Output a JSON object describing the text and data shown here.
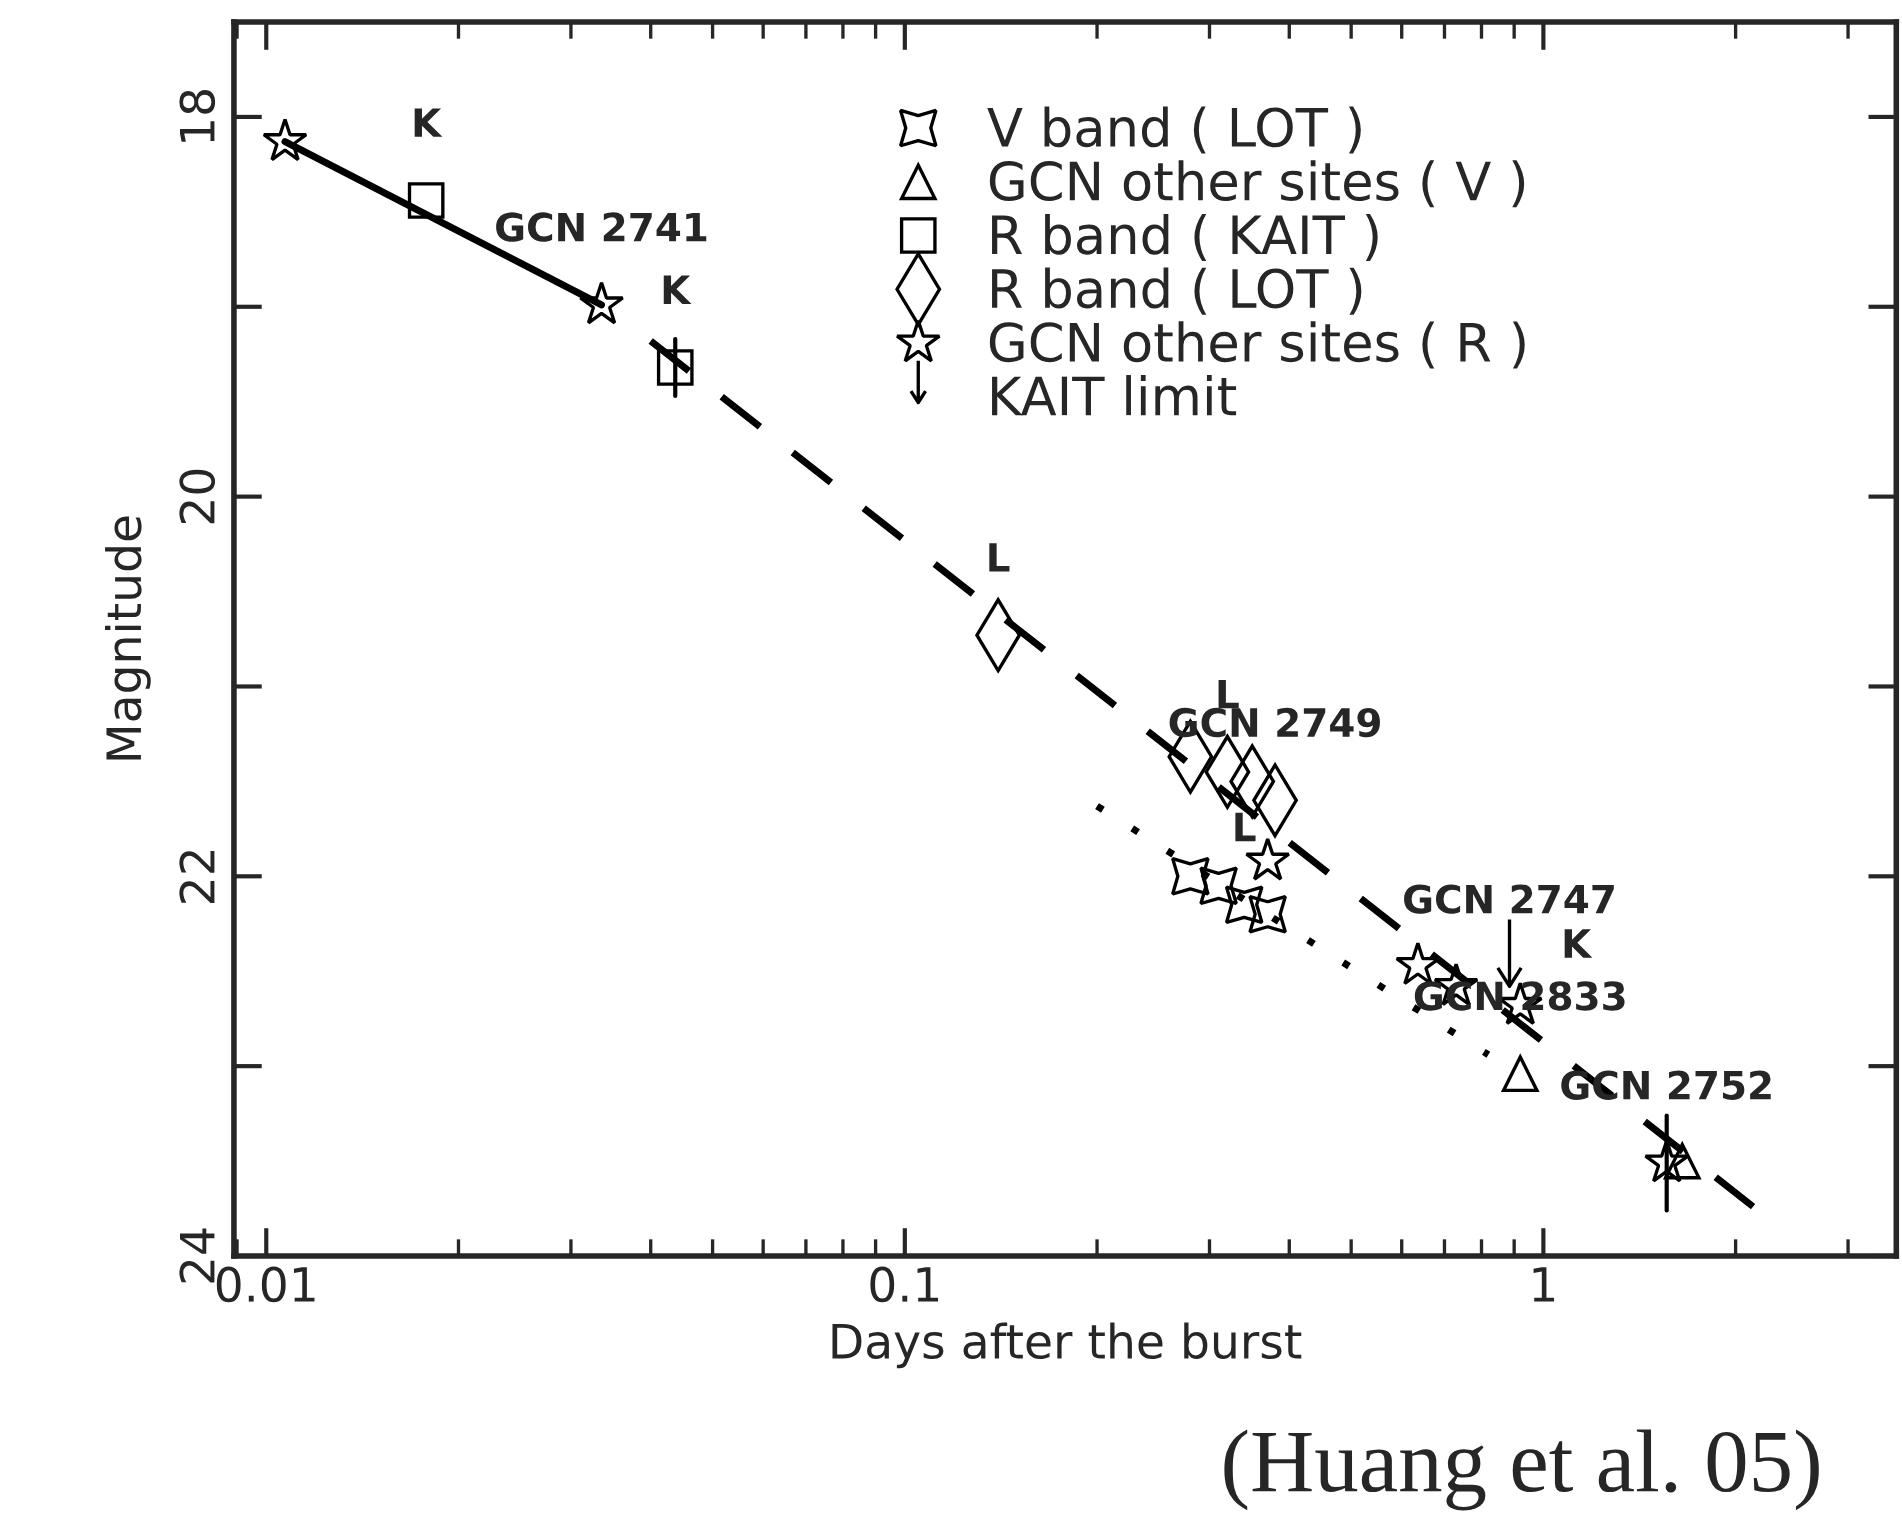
{
  "chart_data": {
    "type": "scatter",
    "xlabel": "Days after the burst",
    "ylabel": "Magnitude",
    "log": "x",
    "xlim": [
      0.0089,
      3.57
    ],
    "xticks": [
      0.01,
      0.1,
      1
    ],
    "ylim": [
      24,
      17.5
    ],
    "yticks": [
      18,
      {
        "value": 19,
        "label": null
      },
      20,
      {
        "value": 21,
        "label": null
      },
      22,
      {
        "value": 23,
        "label": null
      },
      24
    ],
    "legend": "top right",
    "grid": false,
    "series": [
      {
        "name": "V band ( LOT )",
        "marker": "cross",
        "color": "#000000",
        "x": [
          0.28,
          0.31,
          0.34,
          0.37
        ],
        "values": [
          22.0,
          22.05,
          22.15,
          22.2
        ]
      },
      {
        "name": "GCN other sites ( V )",
        "marker": "triangle",
        "color": "#000000",
        "x": [
          0.92,
          1.65
        ],
        "values": [
          23.04,
          23.5
        ]
      },
      {
        "name": "R band ( KAIT )",
        "marker": "square",
        "color": "#000000",
        "x": [
          0.0178,
          0.0437
        ],
        "values": [
          18.44,
          19.32
        ],
        "errors": [
          null,
          0.15
        ]
      },
      {
        "name": "R band ( LOT )",
        "marker": "diamond",
        "color": "#000000",
        "x": [
          0.14,
          0.28,
          0.32,
          0.35,
          0.38
        ],
        "values": [
          20.73,
          21.37,
          21.45,
          21.5,
          21.6
        ]
      },
      {
        "name": "GCN other sites ( R )",
        "marker": "star",
        "color": "#000000",
        "x": [
          0.0107,
          0.0335,
          0.37,
          0.636,
          0.73,
          0.92,
          1.56
        ],
        "values": [
          18.13,
          18.99,
          21.92,
          22.47,
          22.58,
          22.68,
          23.51
        ],
        "errors": [
          null,
          null,
          null,
          null,
          null,
          null,
          0.25
        ]
      },
      {
        "name": "KAIT limit",
        "color": "#000000",
        "x": [
          0.885
        ],
        "values": [
          22.53
        ]
      },
      {
        "type": "line",
        "line_style": "solid",
        "marker": "none",
        "color": "#000000",
        "x": [
          0.0107,
          0.0335
        ],
        "values": [
          18.13,
          18.99
        ]
      },
      {
        "type": "line",
        "line_style": "dashed",
        "marker": "none",
        "color": "#000000",
        "x": [
          0.04,
          2.13
        ],
        "values": [
          19.18,
          23.74
        ]
      },
      {
        "type": "line",
        "line_style": "dotted",
        "marker": "none",
        "color": "#000000",
        "x": [
          0.2,
          0.82
        ],
        "values": [
          21.63,
          22.94
        ]
      }
    ],
    "annotations": [
      {
        "text": "K",
        "x": 0.0178,
        "y": 18.44
      },
      {
        "text": "GCN 2741",
        "x": 0.0335,
        "y": 18.99
      },
      {
        "text": "K",
        "x": 0.0437,
        "y": 19.32
      },
      {
        "text": "L",
        "x": 0.14,
        "y": 20.73
      },
      {
        "text": "L",
        "x": 0.32,
        "y": 21.45
      },
      {
        "text": "GCN 2749",
        "x": 0.38,
        "y": 21.6
      },
      {
        "text": "GCN 2747",
        "x": 0.885,
        "y": 22.53
      },
      {
        "text": "K",
        "x": 0.885,
        "y": 22.53
      },
      {
        "text": "L",
        "x": 0.34,
        "y": 22.15
      },
      {
        "text": "GCN 2833",
        "x": 0.92,
        "y": 23.04
      },
      {
        "text": "GCN 2752",
        "x": 1.56,
        "y": 23.51
      },
      "(Huang et al. 05)"
    ]
  }
}
